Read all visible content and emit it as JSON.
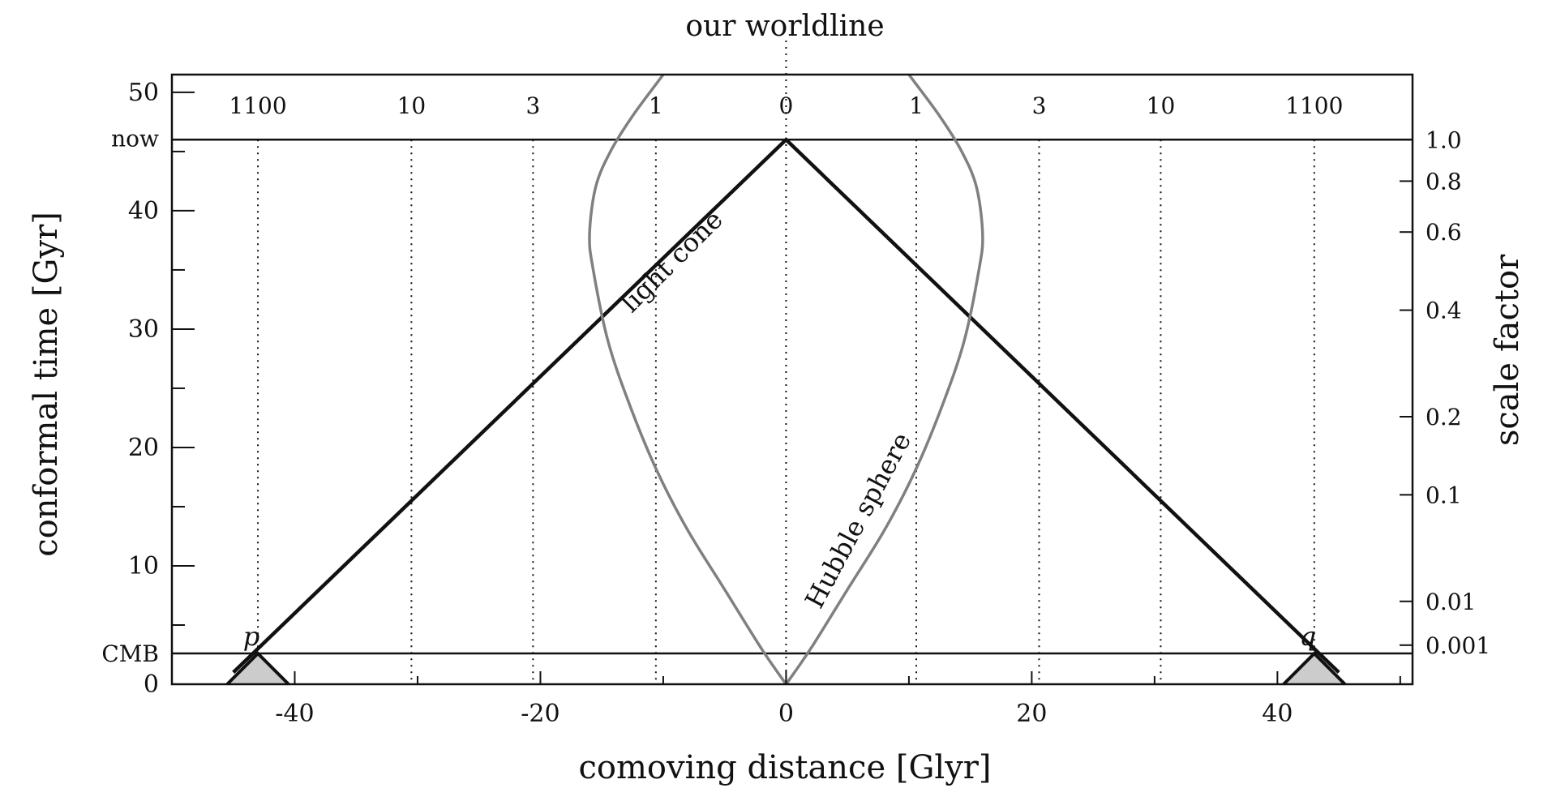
{
  "chart_data": {
    "type": "line",
    "xlabel": "comoving distance [Glyr]",
    "ylabel": "conformal time [Gyr]",
    "y2label": "scale factor",
    "top_label": "our worldline",
    "xlim": [
      -50,
      51
    ],
    "ylim": [
      0,
      51.5
    ],
    "x_ticks": [
      -40,
      -20,
      0,
      20,
      40
    ],
    "y_ticks": [
      0,
      10,
      20,
      30,
      40,
      50
    ],
    "x_tick_labels": [
      "-40",
      "-20",
      "0",
      "20",
      "40"
    ],
    "y_tick_labels": [
      "0",
      "10",
      "20",
      "30",
      "40",
      "50"
    ],
    "grid": false,
    "now": {
      "label": "now",
      "value": 46
    },
    "cmb": {
      "label": "CMB",
      "value": 2.6
    },
    "scale_factor_ticks": [
      {
        "label": "1.0",
        "t": 46
      },
      {
        "label": "0.8",
        "t": 42.5
      },
      {
        "label": "0.6",
        "t": 38.2
      },
      {
        "label": "0.4",
        "t": 31.6
      },
      {
        "label": "0.2",
        "t": 22.6
      },
      {
        "label": "0.1",
        "t": 16
      },
      {
        "label": "0.01",
        "t": 7
      },
      {
        "label": "0.001",
        "t": 3.3
      }
    ],
    "redshift_lines": [
      {
        "label": "1100",
        "x": -43
      },
      {
        "label": "10",
        "x": -30.5
      },
      {
        "label": "3",
        "x": -20.6
      },
      {
        "label": "1",
        "x": -10.6
      },
      {
        "label": "0",
        "x": 0
      },
      {
        "label": "1",
        "x": 10.6
      },
      {
        "label": "3",
        "x": 20.6
      },
      {
        "label": "10",
        "x": 30.5
      },
      {
        "label": "1100",
        "x": 43
      }
    ],
    "series": [
      {
        "name": "light cone",
        "color": "#111111",
        "x": [
          -45,
          0,
          45
        ],
        "y": [
          1,
          46,
          1
        ]
      },
      {
        "name": "Hubble sphere",
        "color": "#808080",
        "x": [
          0,
          2,
          5,
          8,
          10.5,
          12.7,
          14.5,
          15.7,
          16,
          15.5,
          14.3,
          12.5,
          10
        ],
        "y": [
          0,
          3,
          8,
          13,
          18,
          23.5,
          29,
          35,
          38,
          42,
          45,
          48,
          51.5
        ]
      }
    ],
    "points": [
      {
        "label": "p",
        "x": -43,
        "y": 2.6
      },
      {
        "label": "q",
        "x": 43,
        "y": 2.6
      }
    ],
    "past_cones": [
      {
        "apex_x": -43,
        "apex_y": 2.6,
        "half_width": 2.5,
        "color": "#cccccc"
      },
      {
        "apex_x": 43,
        "apex_y": 2.6,
        "half_width": 2.5,
        "color": "#cccccc"
      }
    ]
  }
}
